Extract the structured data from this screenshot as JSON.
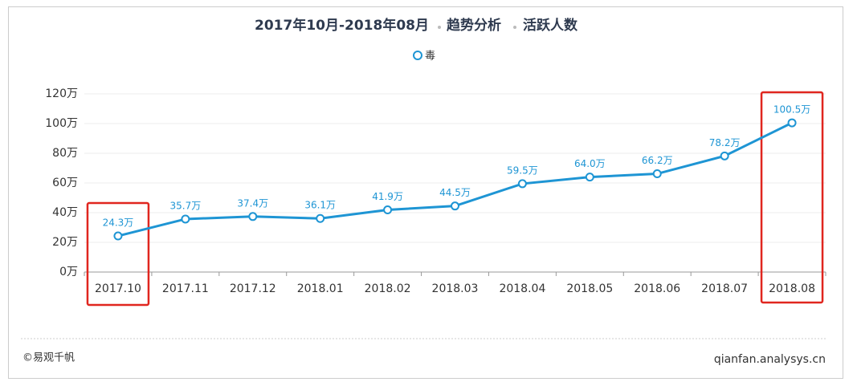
{
  "chart_data": {
    "type": "line",
    "title": [
      "2017年10月-2018年08月",
      "趋势分析",
      "活跃人数"
    ],
    "categories": [
      "2017.10",
      "2017.11",
      "2017.12",
      "2018.01",
      "2018.02",
      "2018.03",
      "2018.04",
      "2018.05",
      "2018.06",
      "2018.07",
      "2018.08"
    ],
    "series": [
      {
        "name": "毒",
        "color": "#1e95d4",
        "values": [
          24.3,
          35.7,
          37.4,
          36.1,
          41.9,
          44.5,
          59.5,
          64.0,
          66.2,
          78.2,
          100.5
        ],
        "value_labels": [
          "24.3万",
          "35.7万",
          "37.4万",
          "36.1万",
          "41.9万",
          "44.5万",
          "59.5万",
          "64.0万",
          "66.2万",
          "78.2万",
          "100.5万"
        ]
      }
    ],
    "ylim": [
      0,
      120
    ],
    "yticks": [
      {
        "value": 0,
        "label": "0万"
      },
      {
        "value": 20,
        "label": "20万"
      },
      {
        "value": 40,
        "label": "40万"
      },
      {
        "value": 60,
        "label": "60万"
      },
      {
        "value": 80,
        "label": "80万"
      },
      {
        "value": 100,
        "label": "100万"
      },
      {
        "value": 120,
        "label": "120万"
      }
    ],
    "grid": true
  },
  "footer": {
    "left": "©易观千帆",
    "right": "qianfan.analysys.cn"
  }
}
